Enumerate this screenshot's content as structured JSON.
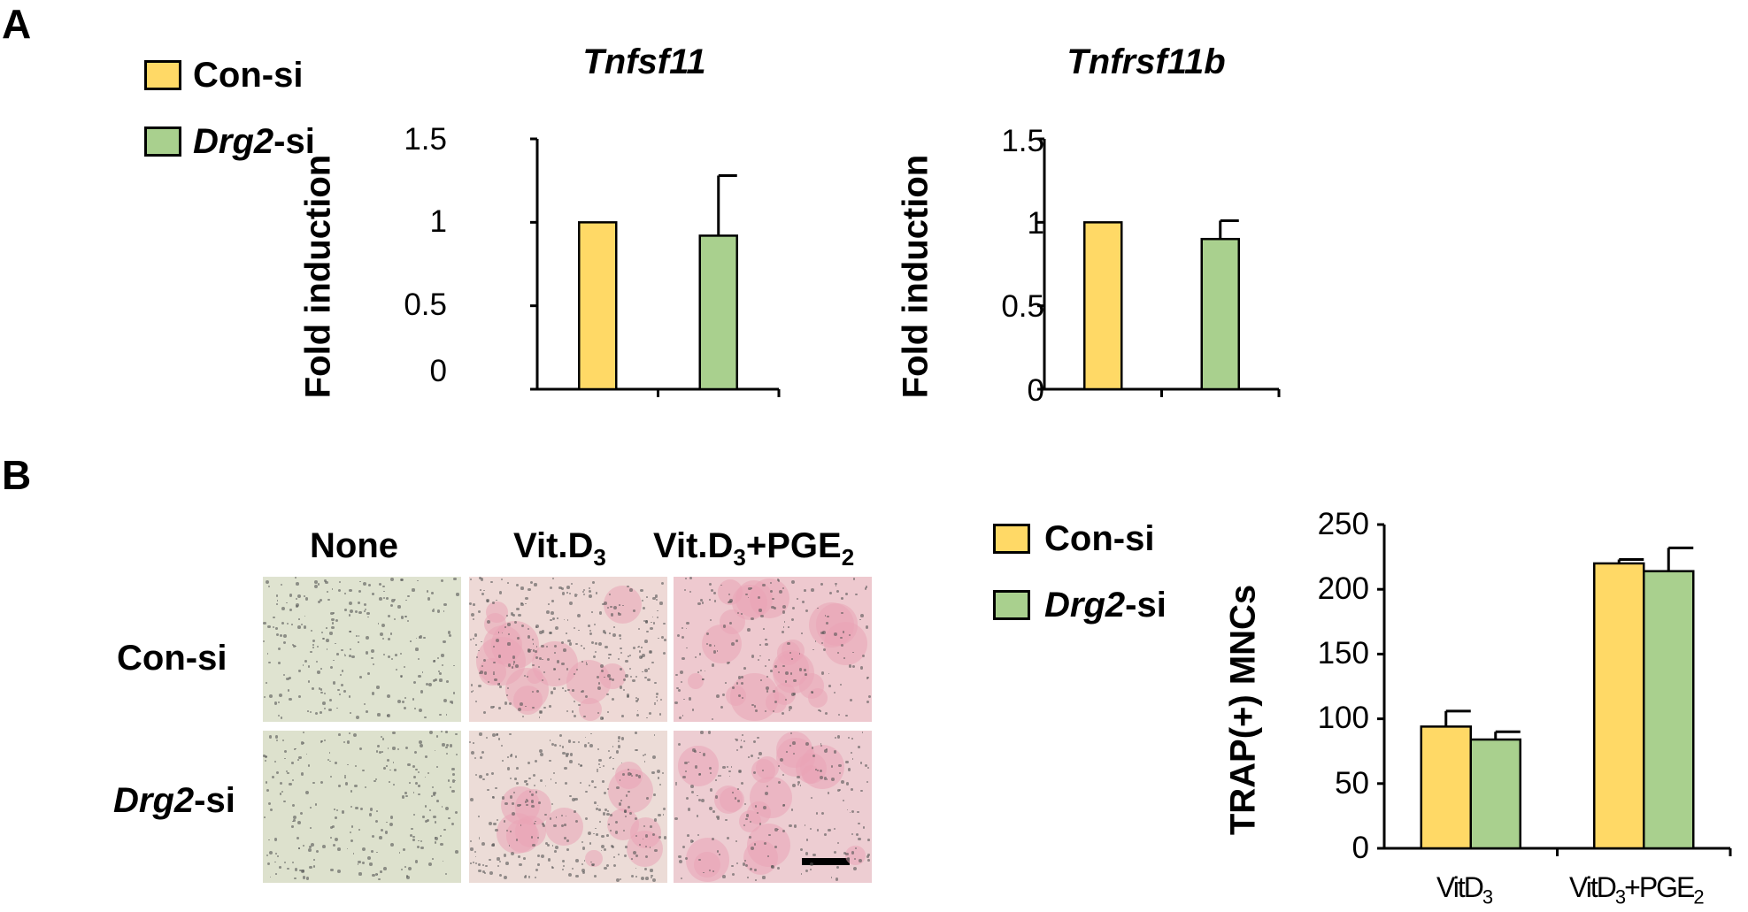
{
  "panels": {
    "a": "A",
    "b": "B"
  },
  "colors": {
    "con_si": "#ffd966",
    "drg2_si": "#a9d08e",
    "axis": "#000000",
    "pink": "#e9a4b6",
    "bg_plain": "#dfe3d0"
  },
  "legend": [
    {
      "label_italic": "",
      "label": "Con-si",
      "color": "#ffd966"
    },
    {
      "label_italic": "Drg2",
      "label": "-si",
      "color": "#a9d08e"
    }
  ],
  "micrographs": {
    "columns": [
      "None",
      "Vit.D",
      "Vit.D+PGE"
    ],
    "column_parts": [
      {
        "main": "None",
        "sub1": "",
        "mid": "",
        "sub2": ""
      },
      {
        "main": "Vit.D",
        "sub1": "3",
        "mid": "",
        "sub2": ""
      },
      {
        "main": "Vit.D",
        "sub1": "3",
        "mid": "+PGE",
        "sub2": "2"
      }
    ],
    "rows": [
      {
        "label_italic": "",
        "label": "Con-si"
      },
      {
        "label_italic": "Drg2",
        "label": "-si"
      }
    ]
  },
  "chart_data": [
    {
      "type": "bar",
      "title": "Tnfsf11",
      "ylabel": "Fold induction",
      "ylim": [
        0,
        1.5
      ],
      "yticks": [
        "0",
        "0.5",
        "1",
        "1.5"
      ],
      "categories": [
        "Con-si",
        "Drg2-si"
      ],
      "values": [
        1.0,
        0.92
      ],
      "errors": [
        0.0,
        0.36
      ]
    },
    {
      "type": "bar",
      "title": "Tnfrsf11b",
      "ylabel": "Fold induction",
      "ylim": [
        0,
        1.5
      ],
      "yticks": [
        "0",
        "0.5",
        "1",
        "1.5"
      ],
      "categories": [
        "Con-si",
        "Drg2-si"
      ],
      "values": [
        1.0,
        0.9
      ],
      "errors": [
        0.0,
        0.11
      ]
    },
    {
      "type": "bar",
      "title": "",
      "ylabel": "TRAP(+) MNCs",
      "ylim": [
        0,
        250
      ],
      "yticks": [
        "0",
        "50",
        "100",
        "150",
        "200",
        "250"
      ],
      "categories": [
        "VitD3",
        "VitD3+PGE2"
      ],
      "category_parts": [
        {
          "main": "VitD",
          "sub1": "3",
          "mid": "",
          "sub2": ""
        },
        {
          "main": "VitD",
          "sub1": "3",
          "mid": "+PGE",
          "sub2": "2"
        }
      ],
      "series": [
        {
          "name": "Con-si",
          "values": [
            94,
            220
          ],
          "errors": [
            12,
            3
          ]
        },
        {
          "name": "Drg2-si",
          "values": [
            84,
            214
          ],
          "errors": [
            6,
            18
          ]
        }
      ]
    }
  ]
}
